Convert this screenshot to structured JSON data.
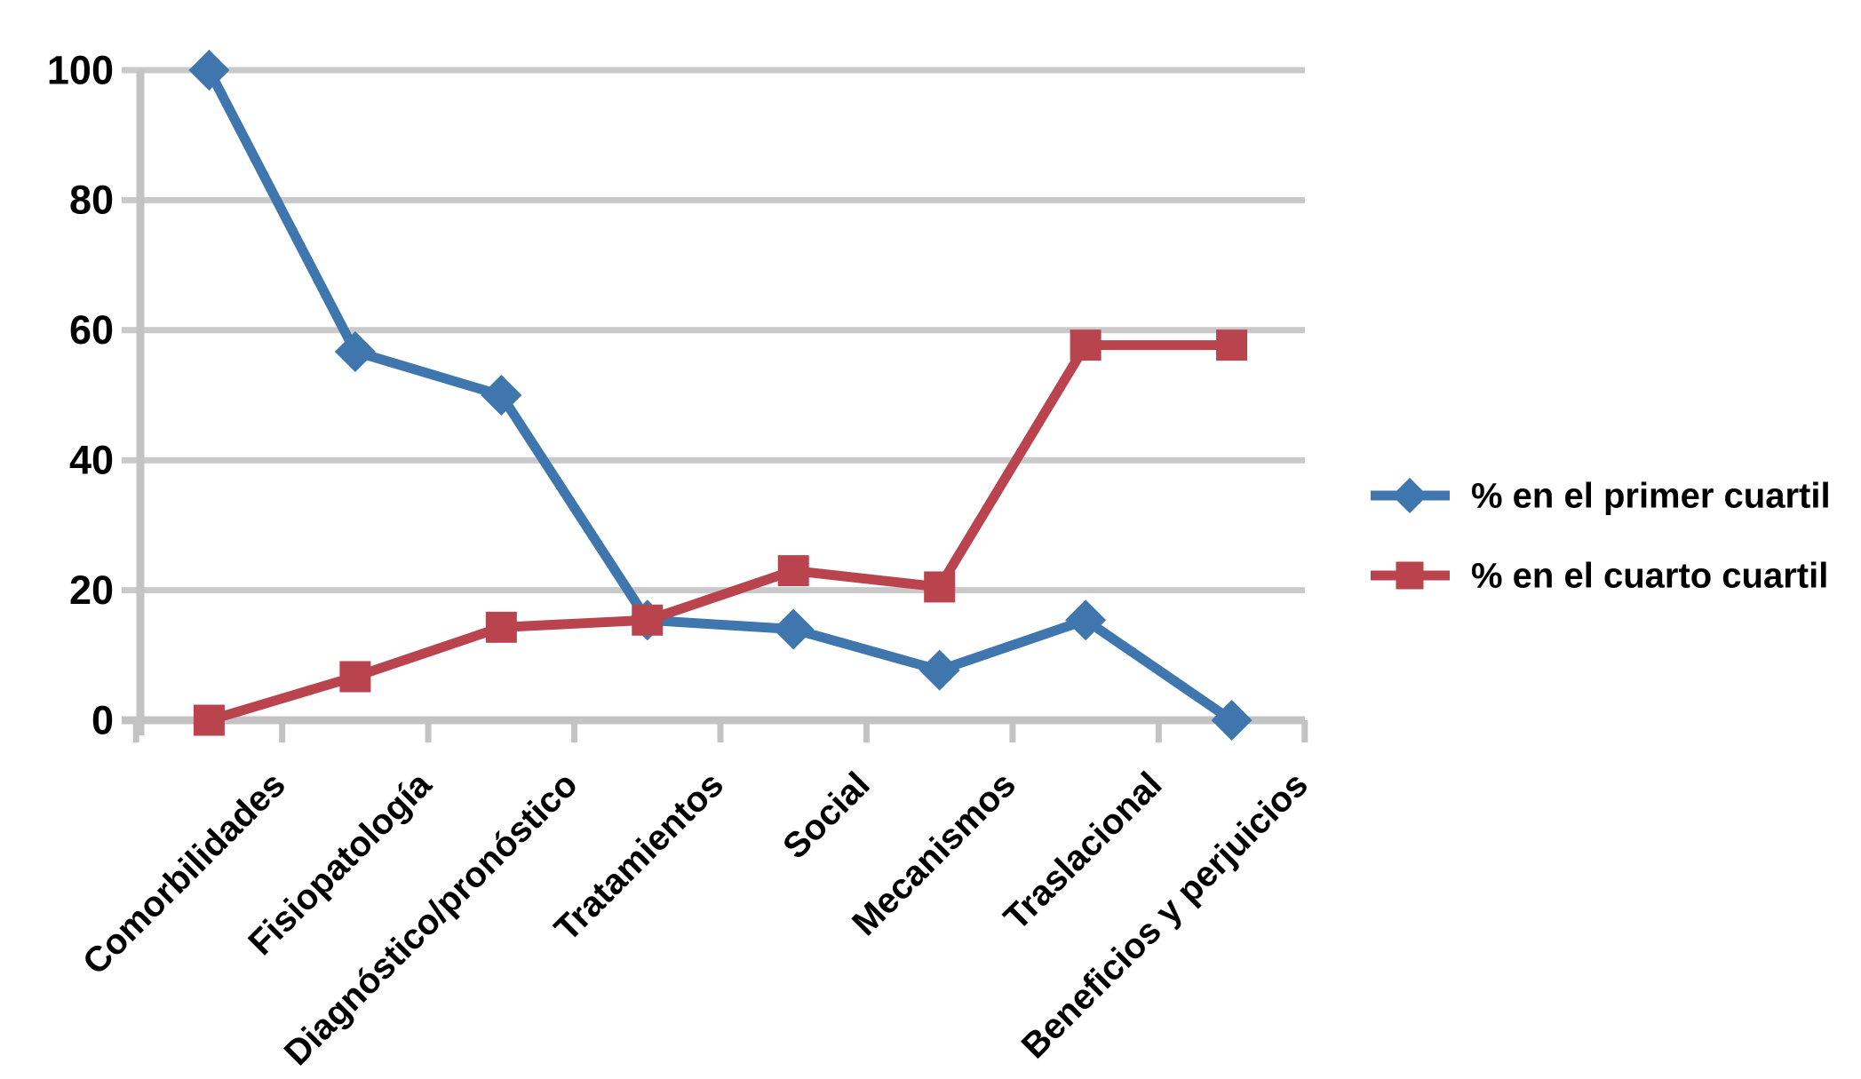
{
  "chart_data": {
    "type": "line",
    "title": "",
    "xlabel": "",
    "ylabel": "",
    "categories": [
      "Comorbilidades",
      "Fisiopatología",
      "Diagnóstico/pronóstico",
      "Tratamientos",
      "Social",
      "Mecanismos",
      "Traslacional",
      "Beneficios y perjuicios"
    ],
    "series": [
      {
        "name": "% en el primer cuartil",
        "marker": "diamond",
        "color": "#3E76AD",
        "values": [
          100,
          56.7,
          50,
          15.4,
          14,
          7.7,
          15.4,
          0
        ]
      },
      {
        "name": "% en el cuarto cuartil",
        "marker": "square",
        "color": "#B9444E",
        "values": [
          0,
          6.7,
          14.3,
          15.4,
          23,
          20.5,
          57.7,
          57.7
        ]
      }
    ],
    "ylim": [
      0,
      100
    ],
    "yticks": [
      0,
      20,
      40,
      60,
      80,
      100
    ],
    "grid": "horizontal-only",
    "legend_position": "right-middle"
  },
  "styles": {
    "background": "#FFFFFF",
    "grid_color": "#C9C9C9",
    "axis_color": "#C3C3C3",
    "text_color": "#000000"
  }
}
